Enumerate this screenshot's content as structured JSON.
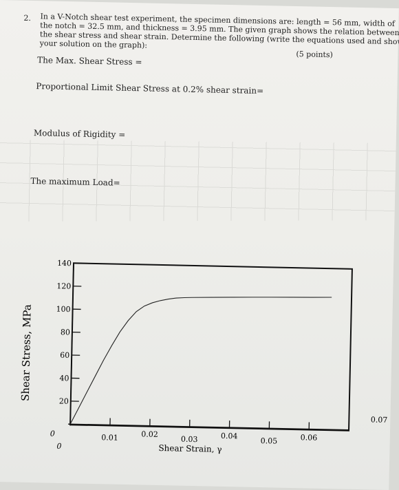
{
  "question": {
    "number": "2.",
    "lines": [
      "In a V-Notch shear test experiment, the specimen dimensions are: length = 56 mm, width of",
      "the notch = 32.5 mm, and thickness = 3.95 mm. The given graph shows the relation between",
      "the shear stress and shear strain. Determine the following (write the equations used and show",
      "your solution on the graph):"
    ],
    "points": "(5 points)"
  },
  "prompts": {
    "max_shear_stress": "The Max. Shear Stress =",
    "proportional_limit": "Proportional Limit Shear Stress at 0.2% shear strain=",
    "modulus_rigidity": "Modulus of Rigidity =",
    "max_load": "The maximum Load="
  },
  "chart_data": {
    "type": "line",
    "xlabel": "Shear Strain, γ",
    "ylabel": "Shear Stress, MPa",
    "xlim": [
      0,
      0.07
    ],
    "ylim": [
      0,
      140
    ],
    "x_ticks": [
      "0",
      "0.01",
      "0.02",
      "0.03",
      "0.04",
      "0.05",
      "0.06",
      "0.07"
    ],
    "y_ticks": [
      "0",
      "20",
      "40",
      "60",
      "80",
      "100",
      "120",
      "140"
    ],
    "grid": false,
    "series": [
      {
        "x": [
          0,
          0.002,
          0.004,
          0.006,
          0.008,
          0.01,
          0.012,
          0.014,
          0.016,
          0.018,
          0.02,
          0.022,
          0.024,
          0.026,
          0.028,
          0.03,
          0.035,
          0.04,
          0.045,
          0.05,
          0.055,
          0.06,
          0.065
        ],
        "values": [
          0,
          14,
          28,
          42,
          56,
          69,
          81,
          91,
          99,
          104,
          107,
          109,
          110.5,
          111.5,
          112,
          112.3,
          112.8,
          113.2,
          113.6,
          114,
          114.3,
          114.6,
          115
        ]
      }
    ]
  }
}
